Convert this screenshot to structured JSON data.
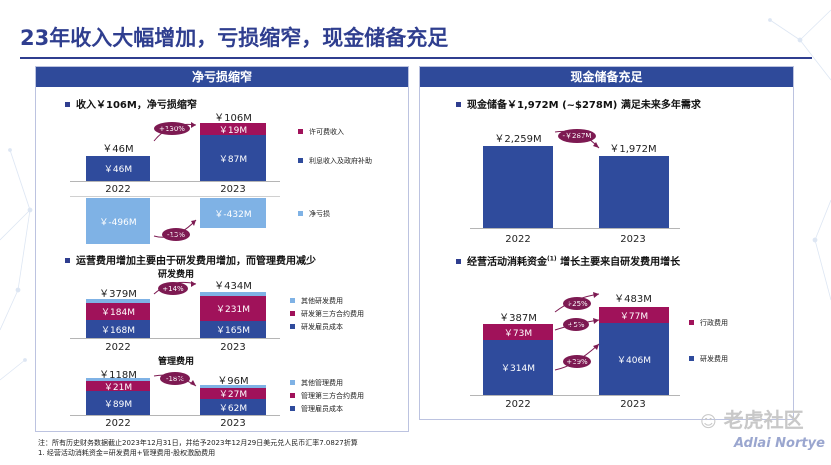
{
  "title": "23年收入大幅增加，亏损缩窄，现金储备充足",
  "left": {
    "header": "净亏损缩窄",
    "s1": "收入￥106M，净亏损缩窄",
    "s2": "运营费用增加主要由于研发费用增加，而管理费用减少",
    "rd_title": "研发费用",
    "ga_title": "管理费用"
  },
  "right": {
    "header": "现金储备充足",
    "s1": "现金储备￥1,972M (~$278M) 满足未来多年需求",
    "s2_pre": "经营活动消耗资金",
    "s2_sup": "(1)",
    "s2_post": " 增长主要来自研发费用增长"
  },
  "years": {
    "a": "2022",
    "b": "2023"
  },
  "revenue": {
    "t22": "￥46M",
    "t23": "￥106M",
    "navy22": "￥46M",
    "mag23": "￥19M",
    "navy23": "￥87M",
    "growth": "+130%",
    "leg_mag": "许可费收入",
    "leg_navy": "利息收入及政府补助"
  },
  "loss": {
    "v22": "￥-496M",
    "v23": "￥-432M",
    "change": "-13%",
    "leg": "净亏损"
  },
  "rd": {
    "t22": "￥379M",
    "t23": "￥434M",
    "mag22": "￥184M",
    "navy22": "￥168M",
    "mag23": "￥231M",
    "navy23": "￥165M",
    "growth": "+14%",
    "leg1": "其他研发费用",
    "leg2": "研发第三方合约费用",
    "leg3": "研发雇员成本"
  },
  "ga": {
    "t22": "￥118M",
    "t23": "￥96M",
    "mag22": "￥21M",
    "navy22": "￥89M",
    "mag23": "￥27M",
    "navy23": "￥62M",
    "change": "-18%",
    "leg1": "其他管理费用",
    "leg2": "管理第三方合约费用",
    "leg3": "管理雇员成本"
  },
  "cash": {
    "v22": "￥2,259M",
    "v23": "￥1,972M",
    "change": "-￥287M"
  },
  "opex": {
    "t22": "￥387M",
    "t23": "￥483M",
    "mag22": "￥73M",
    "navy22": "￥314M",
    "mag23": "￥77M",
    "navy23": "￥406M",
    "g_total": "+25%",
    "g_mag": "+5%",
    "g_navy": "+29%",
    "leg_mag": "行政费用",
    "leg_navy": "研发费用"
  },
  "footnote1": "注：所有历史财务数据截止2023年12月31日，并给予2023年12月29日美元兑人民币汇率7.0827折算",
  "footnote2": "1. 经营活动消耗资金=研发费用+管理费用-股权激励费用",
  "watermark1": "老虎社区",
  "watermark2": "Adlai Nortye"
}
